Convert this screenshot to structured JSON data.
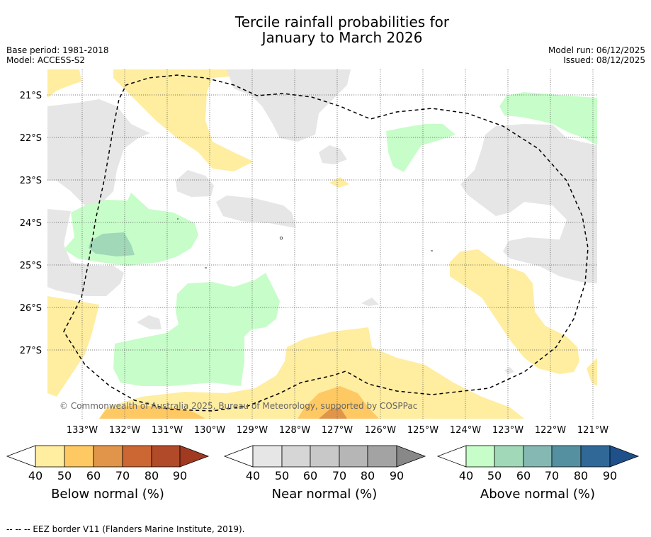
{
  "title_line1": "Tercile rainfall probabilities for",
  "title_line2": "January to March 2026",
  "base_period": "Base period: 1981-2018",
  "model": "Model: ACCESS-S2",
  "model_run": "Model run: 06/12/2025",
  "issued": "Issued: 08/12/2025",
  "lon_labels": [
    "133°W",
    "132°W",
    "131°W",
    "130°W",
    "129°W",
    "128°W",
    "127°W",
    "126°W",
    "125°W",
    "124°W",
    "123°W",
    "122°W",
    "121°W"
  ],
  "lat_labels": [
    "21°S",
    "22°S",
    "23°S",
    "24°S",
    "25°S",
    "26°S",
    "27°S"
  ],
  "copyright": "© Commonwealth of Australia 2025, Bureau of Meteorology, supported by COSPPac",
  "colorbars": [
    {
      "title": "Below normal (%)",
      "ticks": [
        "40",
        "50",
        "60",
        "70",
        "80",
        "90"
      ],
      "colors": [
        "#ffeda0",
        "#fec863",
        "#e0954a",
        "#cc6633",
        "#b04a28"
      ],
      "end_color": "#a03a20"
    },
    {
      "title": "Near normal (%)",
      "ticks": [
        "40",
        "50",
        "60",
        "70",
        "80",
        "90"
      ],
      "colors": [
        "#e6e6e6",
        "#d6d6d6",
        "#c8c8c8",
        "#b6b6b6",
        "#a3a3a3"
      ],
      "end_color": "#888888"
    },
    {
      "title": "Above normal (%)",
      "ticks": [
        "40",
        "50",
        "60",
        "70",
        "80",
        "90"
      ],
      "colors": [
        "#c7fdc9",
        "#a0d8b8",
        "#85b8b2",
        "#5590a0",
        "#306898"
      ],
      "end_color": "#20508a"
    }
  ],
  "footer": "--  --  -- EEZ border V11 (Flanders Marine Institute, 2019).",
  "colors": {
    "below_40": "#ffeda0",
    "below_50": "#fec863",
    "below_60": "#e0954a",
    "near_40": "#e6e6e6",
    "above_40": "#c7fdc9",
    "above_50": "#a0d8b8"
  }
}
